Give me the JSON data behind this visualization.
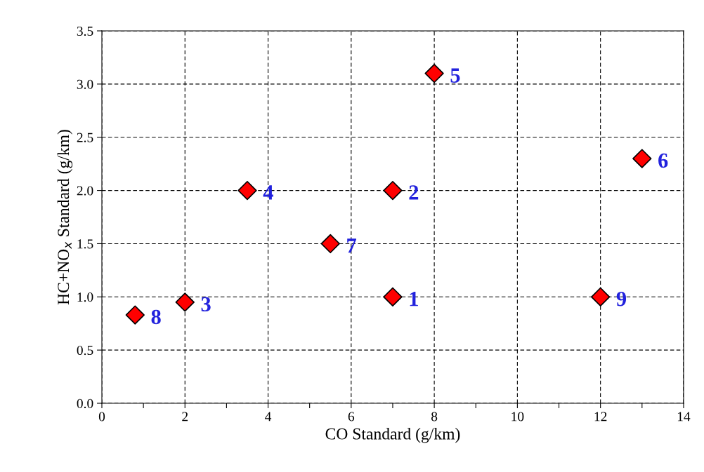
{
  "chart_data": {
    "type": "scatter",
    "xlabel": "CO Standard (g/km)",
    "ylabel": "HC+NO$_{x}$ Standard (g/km)",
    "x": [
      7,
      7,
      2,
      3.5,
      8,
      13,
      5.5,
      0.8,
      12
    ],
    "series": [
      {
        "color": "#ff0000",
        "values": [
          1.0,
          2.0,
          0.95,
          2.0,
          3.1,
          2.3,
          1.5,
          0.83,
          1.0
        ]
      }
    ],
    "marker": "diamond",
    "grid": true,
    "xlim": [
      0,
      14
    ],
    "ylim": [
      0,
      3.5
    ],
    "xticks": [
      0,
      {
        "value": 1,
        "label": null
      },
      2,
      {
        "value": 3,
        "label": null
      },
      4,
      {
        "value": 5,
        "label": null
      },
      6,
      {
        "value": 7,
        "label": null
      },
      8,
      {
        "value": 9,
        "label": null
      },
      10,
      {
        "value": 11,
        "label": null
      },
      12,
      {
        "value": 13,
        "label": null
      },
      14
    ],
    "yticks": [
      {
        "value": 0,
        "label": "0.0"
      },
      {
        "value": 0.5,
        "label": "0.5"
      },
      {
        "value": 1,
        "label": "1.0"
      },
      {
        "value": 1.5,
        "label": "1.5"
      },
      {
        "value": 2,
        "label": "2.0"
      },
      {
        "value": 2.5,
        "label": "2.5"
      },
      {
        "value": 3,
        "label": "3.0"
      },
      {
        "value": 3.5,
        "label": "3.5"
      }
    ],
    "annotations": [
      {
        "text": "1",
        "x": 7,
        "y": 1.0
      },
      {
        "text": "2",
        "x": 7,
        "y": 2.0
      },
      {
        "text": "3",
        "x": 2,
        "y": 0.95
      },
      {
        "text": "4",
        "x": 3.5,
        "y": 2.0
      },
      {
        "text": "5",
        "x": 8,
        "y": 3.1
      },
      {
        "text": "6",
        "x": 13,
        "y": 2.3
      },
      {
        "text": "7",
        "x": 5.5,
        "y": 1.5
      },
      {
        "text": "8",
        "x": 0.8,
        "y": 0.83
      },
      {
        "text": "9",
        "x": 12,
        "y": 1.0
      }
    ]
  }
}
